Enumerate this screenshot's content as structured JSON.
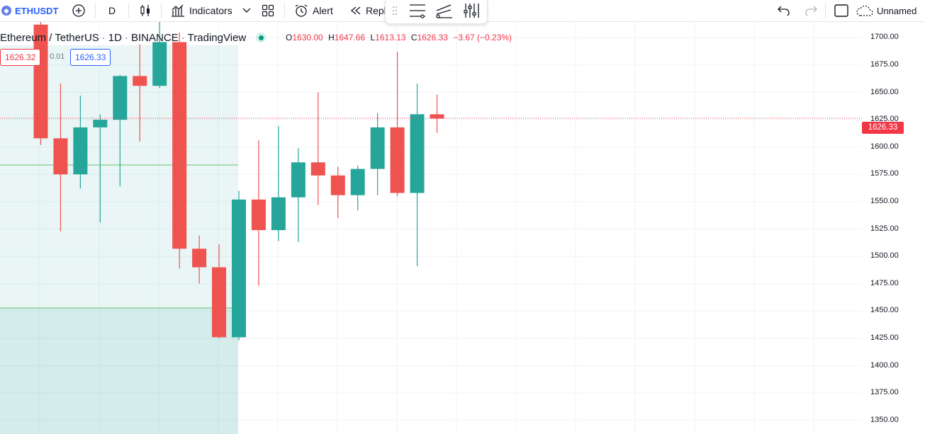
{
  "toolbar": {
    "symbol": "ETHUSDT",
    "interval": "D",
    "indicators_label": "Indicators",
    "alert_label": "Alert",
    "replay_label": "Repl",
    "layout_name": "Unnamed"
  },
  "legend": {
    "title": "Ethereum / TetherUS",
    "interval": "1D",
    "exchange": "BINANCE",
    "source": "TradingView",
    "o_label": "O",
    "o": "1630.00",
    "h_label": "H",
    "h": "1647.66",
    "l_label": "L",
    "l": "1613.13",
    "c_label": "C",
    "c": "1626.33",
    "change": "−3.67 (−0.23%)"
  },
  "trade_panel": {
    "sell_price": "1626.32",
    "spread": "0.01",
    "buy_price": "1626.33"
  },
  "last_price_label": "1626.33",
  "colors": {
    "up": "#26a69a",
    "down": "#ef5350",
    "last_price": "#f23645",
    "accent": "#2962ff"
  },
  "price_axis": {
    "min": 1337.5,
    "max": 1712.5,
    "labels": [
      "1700.00",
      "1675.00",
      "1650.00",
      "1625.00",
      "1600.00",
      "1575.00",
      "1550.00",
      "1525.00",
      "1500.00",
      "1475.00",
      "1450.00",
      "1425.00",
      "1400.00",
      "1375.00",
      "1350.00"
    ],
    "values": [
      1700,
      1675,
      1650,
      1625,
      1600,
      1575,
      1550,
      1525,
      1500,
      1475,
      1450,
      1425,
      1400,
      1375,
      1350
    ]
  },
  "chart_data": {
    "type": "candlestick",
    "last_price": 1626.33,
    "candles": [
      {
        "o": 1712,
        "h": 1715,
        "l": 1602,
        "c": 1608
      },
      {
        "o": 1608,
        "h": 1658,
        "l": 1523,
        "c": 1575
      },
      {
        "o": 1575,
        "h": 1647,
        "l": 1562,
        "c": 1618
      },
      {
        "o": 1618,
        "h": 1630,
        "l": 1531,
        "c": 1625
      },
      {
        "o": 1625,
        "h": 1666,
        "l": 1564,
        "c": 1665
      },
      {
        "o": 1665,
        "h": 1694,
        "l": 1605,
        "c": 1656
      },
      {
        "o": 1656,
        "h": 1720,
        "l": 1654,
        "c": 1696
      },
      {
        "o": 1696,
        "h": 1705,
        "l": 1489,
        "c": 1507
      },
      {
        "o": 1507,
        "h": 1519,
        "l": 1475,
        "c": 1490
      },
      {
        "o": 1490,
        "h": 1511,
        "l": 1425,
        "c": 1426
      },
      {
        "o": 1426,
        "h": 1560,
        "l": 1423,
        "c": 1552
      },
      {
        "o": 1552,
        "h": 1606,
        "l": 1473,
        "c": 1524
      },
      {
        "o": 1524,
        "h": 1619,
        "l": 1514,
        "c": 1554
      },
      {
        "o": 1554,
        "h": 1599,
        "l": 1513,
        "c": 1586
      },
      {
        "o": 1586,
        "h": 1650,
        "l": 1547,
        "c": 1574
      },
      {
        "o": 1574,
        "h": 1582,
        "l": 1535,
        "c": 1556
      },
      {
        "o": 1556,
        "h": 1583,
        "l": 1542,
        "c": 1580
      },
      {
        "o": 1580,
        "h": 1631,
        "l": 1556,
        "c": 1618
      },
      {
        "o": 1618,
        "h": 1687,
        "l": 1555,
        "c": 1558
      },
      {
        "o": 1558,
        "h": 1658,
        "l": 1491,
        "c": 1630
      },
      {
        "o": 1630,
        "h": 1648,
        "l": 1613,
        "c": 1626
      }
    ]
  }
}
